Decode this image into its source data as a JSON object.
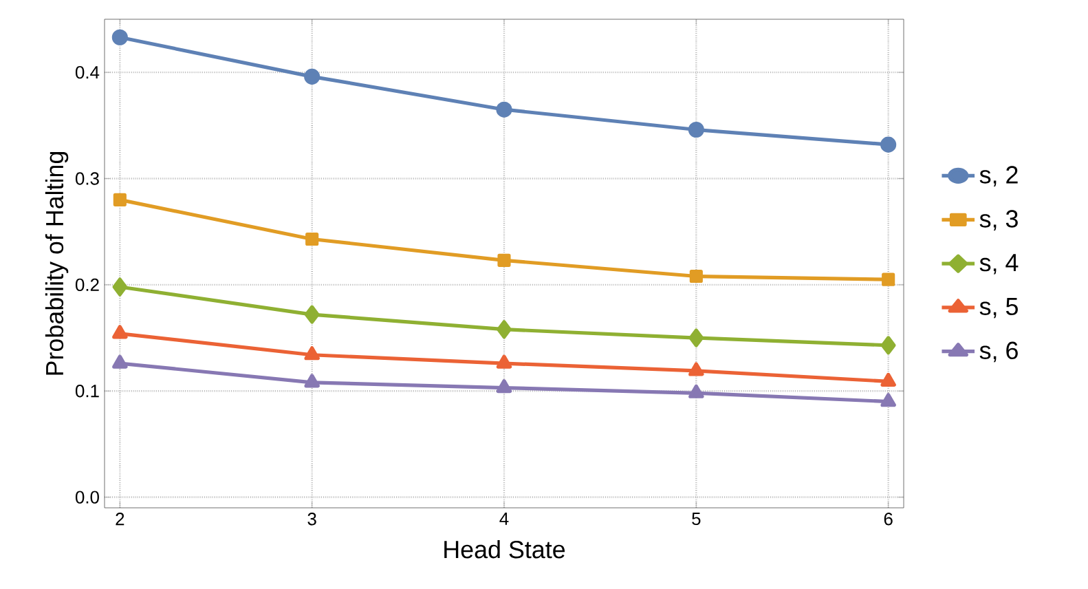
{
  "chart_data": {
    "type": "line",
    "xlabel": "Head State",
    "ylabel": "Probability of Halting",
    "x": [
      2,
      3,
      4,
      5,
      6
    ],
    "series": [
      {
        "name": "s, 2",
        "color": "#5e81b5",
        "marker": "circle",
        "values": [
          0.433,
          0.396,
          0.365,
          0.346,
          0.332
        ]
      },
      {
        "name": "s, 3",
        "color": "#e19c24",
        "marker": "square",
        "values": [
          0.28,
          0.243,
          0.223,
          0.208,
          0.205
        ]
      },
      {
        "name": "s, 4",
        "color": "#8fb032",
        "marker": "diamond",
        "values": [
          0.198,
          0.172,
          0.158,
          0.15,
          0.143
        ]
      },
      {
        "name": "s, 5",
        "color": "#eb6235",
        "marker": "triangle",
        "values": [
          0.154,
          0.134,
          0.126,
          0.119,
          0.109
        ]
      },
      {
        "name": "s, 6",
        "color": "#8778b3",
        "marker": "triangle-down",
        "values": [
          0.126,
          0.108,
          0.103,
          0.098,
          0.09
        ]
      }
    ],
    "xlim": [
      1.92,
      6.08
    ],
    "ylim": [
      -0.01,
      0.45
    ],
    "xticks": [
      2,
      3,
      4,
      5,
      6
    ],
    "yticks": [
      {
        "value": 0,
        "label": "0.0"
      },
      0.1,
      0.2,
      0.3,
      0.4
    ],
    "grid": true,
    "legend": "right",
    "line_style": "solid"
  }
}
